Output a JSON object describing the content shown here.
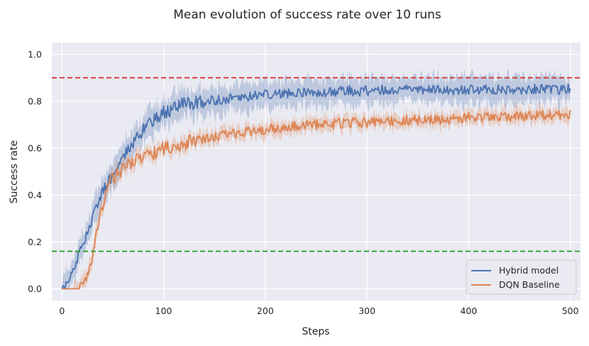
{
  "chart_data": {
    "type": "line",
    "title": "Mean evolution of success rate over 10 runs",
    "xlabel": "Steps",
    "ylabel": "Success rate",
    "xlim": [
      -10,
      510
    ],
    "ylim": [
      -0.05,
      1.05
    ],
    "xticks": [
      0,
      100,
      200,
      300,
      400,
      500
    ],
    "yticks": [
      0.0,
      0.2,
      0.4,
      0.6,
      0.8,
      1.0
    ],
    "xtick_labels": [
      "0",
      "100",
      "200",
      "300",
      "400",
      "500"
    ],
    "ytick_labels": [
      "0.0",
      "0.2",
      "0.4",
      "0.6",
      "0.8",
      "1.0"
    ],
    "grid": true,
    "legend_position": "lower-right",
    "series": [
      {
        "name": "Hybrid model",
        "color": "#4c72b0",
        "x": [
          0,
          5,
          10,
          15,
          20,
          25,
          30,
          35,
          40,
          50,
          60,
          70,
          80,
          90,
          100,
          110,
          120,
          140,
          160,
          180,
          200,
          220,
          240,
          260,
          280,
          300,
          320,
          340,
          360,
          380,
          400,
          420,
          440,
          460,
          480,
          500
        ],
        "values": [
          0.0,
          0.02,
          0.07,
          0.13,
          0.19,
          0.24,
          0.3,
          0.36,
          0.42,
          0.49,
          0.56,
          0.63,
          0.68,
          0.72,
          0.75,
          0.77,
          0.79,
          0.8,
          0.81,
          0.82,
          0.83,
          0.835,
          0.84,
          0.84,
          0.845,
          0.845,
          0.85,
          0.85,
          0.85,
          0.845,
          0.85,
          0.85,
          0.85,
          0.85,
          0.85,
          0.85
        ],
        "band": 0.055
      },
      {
        "name": "DQN Baseline",
        "color": "#dd8452",
        "x": [
          0,
          10,
          20,
          25,
          30,
          35,
          40,
          45,
          50,
          60,
          70,
          80,
          90,
          100,
          120,
          140,
          160,
          180,
          200,
          220,
          240,
          260,
          280,
          300,
          320,
          340,
          360,
          380,
          400,
          420,
          440,
          460,
          480,
          500
        ],
        "values": [
          0.0,
          0.0,
          0.01,
          0.05,
          0.14,
          0.26,
          0.36,
          0.43,
          0.47,
          0.51,
          0.54,
          0.56,
          0.58,
          0.6,
          0.62,
          0.64,
          0.66,
          0.67,
          0.68,
          0.69,
          0.7,
          0.7,
          0.71,
          0.71,
          0.715,
          0.72,
          0.72,
          0.72,
          0.73,
          0.73,
          0.735,
          0.74,
          0.74,
          0.74
        ],
        "band": 0.03
      }
    ],
    "reference_lines": [
      {
        "y": 0.9,
        "color": "#d62728",
        "style": "dashed"
      },
      {
        "y": 0.16,
        "color": "#2ca02c",
        "style": "dashed"
      }
    ]
  }
}
